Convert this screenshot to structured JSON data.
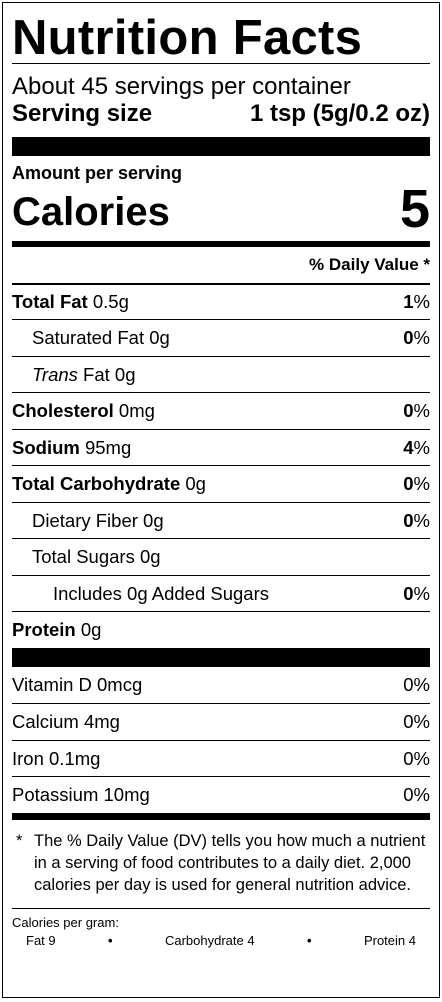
{
  "title": "Nutrition Facts",
  "servings_per_container": "About 45 servings per container",
  "serving_size": {
    "label": "Serving size",
    "value": "1 tsp (5g/0.2 oz)"
  },
  "amount_per_serving": "Amount per serving",
  "calories": {
    "label": "Calories",
    "value": "5"
  },
  "daily_value_header": "% Daily Value *",
  "nutrients": [
    {
      "name": "Total Fat",
      "amount": " 0.5g",
      "dv": "1",
      "bold": true
    },
    {
      "name": "Saturated Fat",
      "amount": " 0g",
      "dv": "0"
    },
    {
      "name_italic": "Trans",
      "name": " Fat",
      "amount": " 0g",
      "dv": ""
    },
    {
      "name": "Cholesterol",
      "amount": " 0mg",
      "dv": "0",
      "bold": true
    },
    {
      "name": "Sodium",
      "amount": " 95mg",
      "dv": "4",
      "bold": true
    },
    {
      "name": "Total Carbohydrate",
      "amount": " 0g",
      "dv": "0",
      "bold": true
    },
    {
      "name": "Dietary Fiber",
      "amount": " 0g",
      "dv": "0"
    },
    {
      "name": "Total Sugars",
      "amount": " 0g",
      "dv": ""
    },
    {
      "name": "Includes 0g Added Sugars",
      "amount": "",
      "dv": "0"
    },
    {
      "name": "Protein",
      "amount": " 0g",
      "dv": "",
      "bold": true
    }
  ],
  "percent_sign": "%",
  "vitamins": [
    {
      "name": "Vitamin D 0mcg",
      "dv": "0%"
    },
    {
      "name": "Calcium 4mg",
      "dv": "0%"
    },
    {
      "name": "Iron 0.1mg",
      "dv": "0%"
    },
    {
      "name": "Potassium 10mg",
      "dv": "0%"
    }
  ],
  "footnote": {
    "star": "*",
    "text": "The % Daily Value (DV) tells you how much a nutrient in a serving of food contributes to a daily diet. 2,000 calories per day is used for general nutrition advice."
  },
  "calories_per_gram": {
    "label": "Calories per gram:",
    "fat": "Fat 9",
    "carbohydrate": "Carbohydrate 4",
    "protein": "Protein 4",
    "separator": "•"
  }
}
